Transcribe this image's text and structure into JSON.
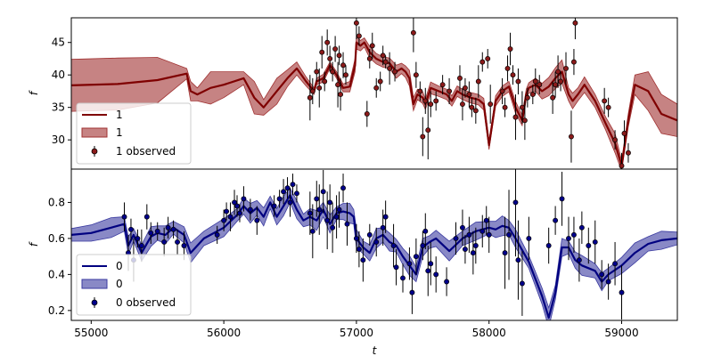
{
  "colors": {
    "panel1_line": "#7f0000",
    "panel1_band": "#a03030",
    "panel1_point": "#8b1a1a",
    "panel2_line": "#000080",
    "panel2_band": "#3a3aa0",
    "panel2_point": "#00008b",
    "errorbar": "#000000"
  },
  "chart_data": [
    {
      "type": "line",
      "panel": "top",
      "xlabel": "t",
      "ylabel": "f",
      "xlim": [
        54850,
        59420
      ],
      "ylim": [
        25.5,
        48.8
      ],
      "xticks": [],
      "yticks": [
        30,
        35,
        40,
        45
      ],
      "ytick_labels": [
        "30",
        "35",
        "40",
        "45"
      ],
      "legend": {
        "placement": "lower-left",
        "entries": [
          "1",
          "1",
          "1 observed"
        ]
      },
      "series": [
        {
          "name": "1",
          "kind": "model-line",
          "x": [
            54850,
            55200,
            55500,
            55720,
            55750,
            55800,
            55900,
            56000,
            56150,
            56230,
            56300,
            56400,
            56480,
            56550,
            56620,
            56680,
            56700,
            56750,
            56800,
            56850,
            56900,
            56950,
            56990,
            57000,
            57030,
            57060,
            57100,
            57150,
            57200,
            57250,
            57300,
            57340,
            57370,
            57400,
            57430,
            57460,
            57500,
            57520,
            57560,
            57620,
            57680,
            57720,
            57760,
            57800,
            57860,
            57920,
            57960,
            58000,
            58050,
            58100,
            58150,
            58200,
            58250,
            58280,
            58300,
            58350,
            58400,
            58450,
            58500,
            58550,
            58600,
            58630,
            58670,
            58720,
            58800,
            58880,
            58950,
            59000,
            59050,
            59100,
            59200,
            59300,
            59420
          ],
          "y": [
            38.4,
            38.6,
            39.2,
            40.2,
            37.5,
            37.0,
            38.0,
            38.5,
            39.5,
            36.5,
            35.0,
            37.5,
            39.5,
            41.0,
            39.0,
            37.5,
            39.0,
            39.5,
            41.5,
            40.0,
            38.0,
            38.2,
            41.5,
            45.0,
            44.5,
            45.0,
            43.5,
            42.5,
            42.0,
            41.8,
            40.5,
            41.0,
            40.5,
            39.5,
            35.5,
            37.0,
            36.5,
            35.5,
            38.0,
            37.5,
            37.0,
            36.0,
            37.5,
            37.0,
            36.5,
            36.2,
            35.5,
            29.2,
            36.0,
            37.5,
            38.2,
            35.0,
            33.0,
            37.0,
            38.0,
            38.5,
            37.5,
            38.2,
            39.5,
            40.5,
            37.0,
            36.0,
            37.0,
            38.5,
            36.0,
            32.5,
            29.5,
            26.0,
            33.0,
            38.5,
            37.5,
            34.0,
            33.0
          ],
          "band_halfwidth": [
            4.0,
            4.0,
            3.5,
            0.8,
            1.5,
            1.0,
            2.5,
            2.0,
            1.0,
            2.5,
            1.2,
            2.0,
            1.3,
            1.0,
            0.7,
            0.5,
            0.5,
            0.6,
            0.5,
            0.5,
            0.6,
            0.8,
            1.0,
            1.0,
            0.8,
            0.7,
            0.9,
            0.8,
            0.8,
            0.8,
            1.0,
            0.8,
            0.9,
            1.2,
            1.0,
            0.8,
            0.9,
            0.8,
            0.9,
            0.8,
            0.8,
            0.8,
            0.8,
            0.8,
            0.8,
            0.8,
            0.9,
            0.7,
            0.8,
            0.8,
            0.8,
            0.9,
            0.8,
            0.8,
            0.8,
            1.0,
            1.2,
            1.4,
            1.6,
            1.8,
            1.0,
            1.2,
            1.0,
            1.2,
            1.0,
            1.0,
            1.5,
            0.8,
            1.0,
            1.5,
            3.0,
            3.0,
            2.5
          ]
        },
        {
          "name": "1 observed",
          "kind": "points",
          "x": [
            56650,
            56670,
            56700,
            56720,
            56740,
            56760,
            56780,
            56800,
            56820,
            56840,
            56860,
            56870,
            56880,
            56900,
            56920,
            57000,
            57020,
            57080,
            57100,
            57120,
            57150,
            57180,
            57200,
            57220,
            57250,
            57290,
            57430,
            57450,
            57480,
            57500,
            57520,
            57540,
            57560,
            57600,
            57650,
            57700,
            57780,
            57800,
            57820,
            57850,
            57870,
            57900,
            57920,
            57950,
            57990,
            58010,
            58100,
            58120,
            58140,
            58160,
            58180,
            58200,
            58220,
            58250,
            58270,
            58290,
            58330,
            58350,
            58380,
            58480,
            58500,
            58520,
            58540,
            58580,
            58620,
            58640,
            58650,
            58870,
            58900,
            58950,
            59000,
            59020,
            59050
          ],
          "y": [
            36.5,
            37.5,
            40.5,
            38.0,
            43.5,
            39.0,
            45.0,
            42.5,
            40.5,
            44.0,
            38.5,
            43.0,
            37.0,
            41.5,
            40.0,
            48.0,
            46.0,
            34.0,
            42.5,
            44.5,
            38.0,
            39.0,
            43.0,
            42.0,
            41.0,
            40.5,
            46.5,
            40.0,
            37.5,
            30.5,
            36.0,
            31.5,
            35.5,
            36.0,
            38.5,
            37.5,
            39.5,
            35.5,
            38.0,
            37.0,
            35.0,
            34.5,
            39.0,
            42.0,
            42.5,
            35.5,
            37.5,
            35.0,
            41.0,
            44.0,
            40.0,
            33.5,
            39.0,
            35.0,
            33.0,
            36.5,
            37.0,
            39.0,
            38.5,
            36.5,
            38.5,
            40.5,
            39.0,
            41.0,
            30.5,
            42.0,
            48.0,
            36.0,
            35.0,
            30.0,
            26.0,
            31.0,
            28.0
          ],
          "err": [
            3.5,
            2.0,
            1.5,
            3.0,
            2.5,
            1.5,
            2.0,
            2.0,
            1.5,
            2.0,
            3.5,
            1.5,
            2.5,
            2.0,
            1.5,
            2.5,
            1.5,
            2.0,
            1.5,
            2.0,
            1.5,
            1.5,
            1.5,
            1.0,
            2.5,
            1.5,
            3.0,
            2.0,
            1.5,
            3.0,
            2.0,
            4.5,
            2.0,
            1.5,
            1.5,
            2.0,
            2.0,
            2.5,
            1.5,
            2.0,
            1.5,
            2.0,
            2.5,
            1.5,
            1.5,
            3.0,
            2.0,
            1.5,
            2.0,
            2.5,
            1.5,
            3.5,
            2.0,
            2.5,
            3.0,
            1.5,
            1.5,
            2.0,
            1.5,
            2.5,
            2.0,
            2.5,
            1.5,
            2.5,
            4.0,
            2.0,
            2.5,
            2.0,
            1.5,
            1.5,
            2.0,
            2.0,
            1.5
          ]
        }
      ]
    },
    {
      "type": "line",
      "panel": "bottom",
      "xlabel": "t",
      "ylabel": "f",
      "xlim": [
        54850,
        59420
      ],
      "ylim": [
        0.145,
        0.985
      ],
      "xticks": [
        55000,
        56000,
        57000,
        58000,
        59000
      ],
      "xtick_labels": [
        "55000",
        "56000",
        "57000",
        "58000",
        "59000"
      ],
      "yticks": [
        0.2,
        0.4,
        0.6,
        0.8
      ],
      "ytick_labels": [
        "0.2",
        "0.4",
        "0.6",
        "0.8"
      ],
      "legend": {
        "placement": "lower-left",
        "entries": [
          "0",
          "0",
          "0 observed"
        ]
      },
      "series": [
        {
          "name": "0",
          "kind": "model-line",
          "x": [
            54850,
            55000,
            55150,
            55250,
            55280,
            55320,
            55380,
            55450,
            55500,
            55560,
            55620,
            55700,
            55750,
            55850,
            56000,
            56100,
            56150,
            56200,
            56250,
            56300,
            56350,
            56400,
            56450,
            56500,
            56550,
            56600,
            56650,
            56700,
            56750,
            56800,
            56850,
            56900,
            56950,
            56980,
            57000,
            57050,
            57100,
            57150,
            57200,
            57250,
            57300,
            57350,
            57400,
            57450,
            57500,
            57550,
            57600,
            57700,
            57800,
            57900,
            58000,
            58050,
            58100,
            58150,
            58200,
            58300,
            58400,
            58450,
            58500,
            58550,
            58600,
            58650,
            58700,
            58800,
            58850,
            58900,
            59000,
            59100,
            59200,
            59300,
            59420
          ],
          "y": [
            0.62,
            0.63,
            0.66,
            0.68,
            0.56,
            0.62,
            0.52,
            0.61,
            0.63,
            0.62,
            0.66,
            0.62,
            0.52,
            0.6,
            0.66,
            0.73,
            0.78,
            0.74,
            0.77,
            0.72,
            0.8,
            0.72,
            0.78,
            0.84,
            0.76,
            0.7,
            0.72,
            0.7,
            0.76,
            0.68,
            0.74,
            0.75,
            0.74,
            0.72,
            0.6,
            0.55,
            0.52,
            0.6,
            0.62,
            0.58,
            0.56,
            0.5,
            0.45,
            0.4,
            0.55,
            0.58,
            0.6,
            0.53,
            0.6,
            0.64,
            0.66,
            0.65,
            0.67,
            0.66,
            0.6,
            0.47,
            0.28,
            0.16,
            0.3,
            0.55,
            0.55,
            0.48,
            0.45,
            0.42,
            0.36,
            0.4,
            0.45,
            0.52,
            0.57,
            0.59,
            0.6
          ]
        },
        {
          "name": "0 observed",
          "kind": "points",
          "x": [
            55250,
            55280,
            55300,
            55320,
            55350,
            55380,
            55420,
            55450,
            55500,
            55550,
            55580,
            55620,
            55650,
            55700,
            55950,
            56000,
            56020,
            56050,
            56080,
            56100,
            56120,
            56150,
            56200,
            56250,
            56380,
            56420,
            56450,
            56480,
            56500,
            56520,
            56550,
            56650,
            56670,
            56700,
            56720,
            56750,
            56780,
            56800,
            56820,
            56850,
            56870,
            56900,
            56930,
            57000,
            57020,
            57050,
            57100,
            57150,
            57200,
            57220,
            57280,
            57300,
            57350,
            57400,
            57420,
            57450,
            57500,
            57520,
            57540,
            57560,
            57600,
            57680,
            57750,
            57800,
            57820,
            57850,
            57880,
            57900,
            57950,
            57980,
            58000,
            58120,
            58150,
            58200,
            58220,
            58250,
            58300,
            58450,
            58500,
            58550,
            58600,
            58640,
            58680,
            58700,
            58750,
            58800,
            58850,
            58900,
            58950,
            59000
          ],
          "y": [
            0.72,
            0.52,
            0.65,
            0.48,
            0.6,
            0.56,
            0.72,
            0.63,
            0.64,
            0.58,
            0.66,
            0.65,
            0.58,
            0.56,
            0.62,
            0.7,
            0.75,
            0.72,
            0.8,
            0.78,
            0.74,
            0.82,
            0.76,
            0.7,
            0.78,
            0.82,
            0.86,
            0.88,
            0.8,
            0.9,
            0.85,
            0.74,
            0.64,
            0.82,
            0.76,
            0.86,
            0.7,
            0.8,
            0.66,
            0.72,
            0.76,
            0.88,
            0.68,
            0.6,
            0.54,
            0.48,
            0.62,
            0.58,
            0.66,
            0.72,
            0.56,
            0.44,
            0.38,
            0.46,
            0.3,
            0.5,
            0.56,
            0.64,
            0.42,
            0.46,
            0.4,
            0.36,
            0.6,
            0.66,
            0.54,
            0.62,
            0.52,
            0.56,
            0.64,
            0.7,
            0.62,
            0.52,
            0.62,
            0.8,
            0.48,
            0.35,
            0.6,
            0.56,
            0.7,
            0.82,
            0.6,
            0.62,
            0.48,
            0.66,
            0.56,
            0.58,
            0.4,
            0.36,
            0.46,
            0.3
          ],
          "err": [
            0.08,
            0.1,
            0.06,
            0.12,
            0.05,
            0.09,
            0.07,
            0.06,
            0.05,
            0.08,
            0.06,
            0.05,
            0.07,
            0.08,
            0.05,
            0.06,
            0.05,
            0.08,
            0.07,
            0.06,
            0.05,
            0.07,
            0.06,
            0.08,
            0.06,
            0.05,
            0.07,
            0.06,
            0.08,
            0.06,
            0.05,
            0.12,
            0.15,
            0.1,
            0.14,
            0.12,
            0.16,
            0.1,
            0.14,
            0.12,
            0.1,
            0.08,
            0.12,
            0.08,
            0.1,
            0.12,
            0.06,
            0.08,
            0.1,
            0.09,
            0.12,
            0.1,
            0.08,
            0.09,
            0.12,
            0.1,
            0.08,
            0.1,
            0.14,
            0.12,
            0.1,
            0.08,
            0.09,
            0.1,
            0.08,
            0.1,
            0.12,
            0.1,
            0.09,
            0.08,
            0.1,
            0.2,
            0.25,
            0.3,
            0.22,
            0.18,
            0.12,
            0.1,
            0.08,
            0.15,
            0.12,
            0.1,
            0.12,
            0.09,
            0.1,
            0.12,
            0.08,
            0.1,
            0.12,
            0.15
          ]
        }
      ]
    }
  ]
}
